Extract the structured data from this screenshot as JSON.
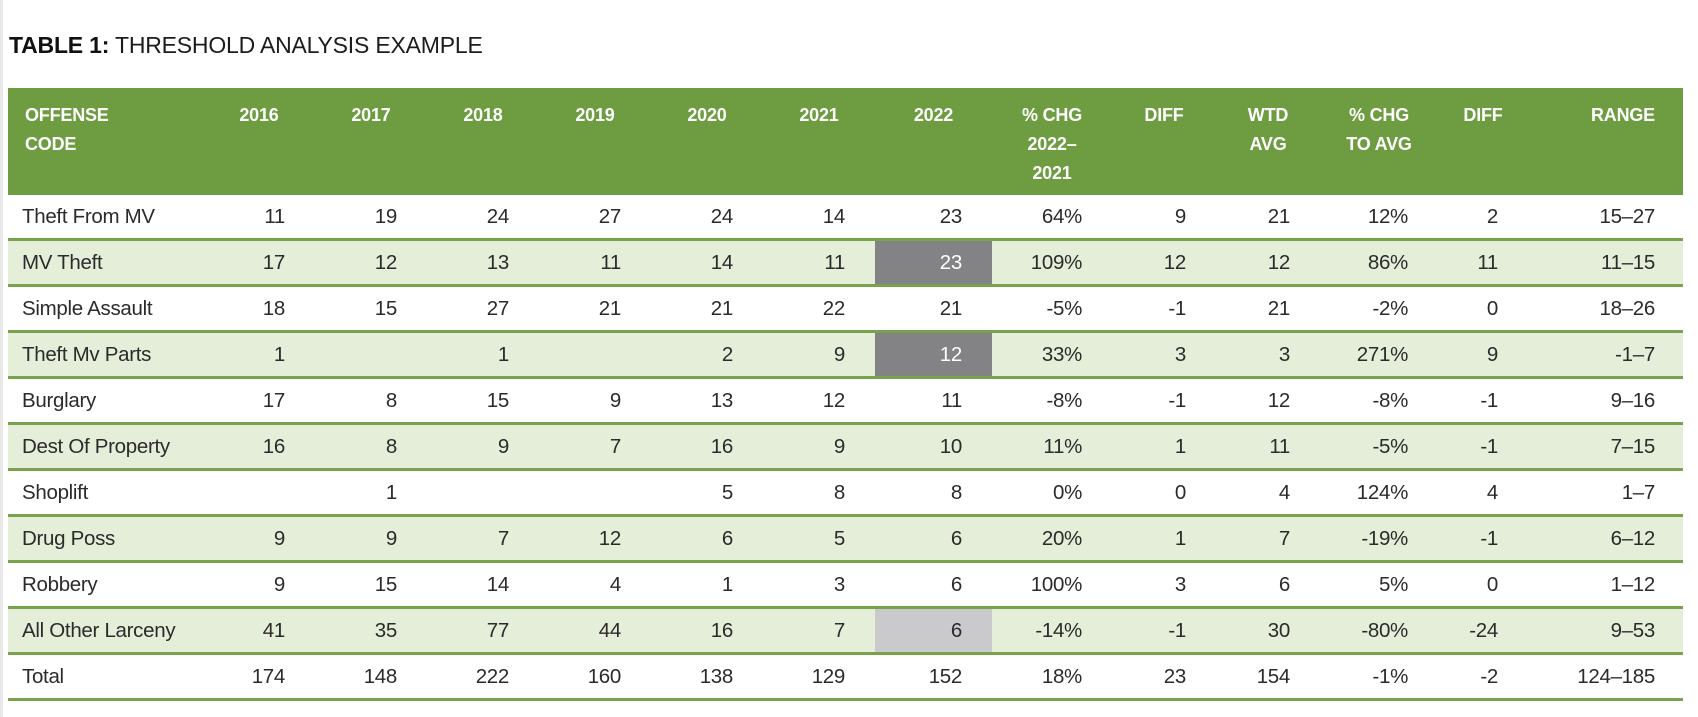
{
  "title": {
    "label": "TABLE 1:",
    "text": " THRESHOLD ANALYSIS EXAMPLE"
  },
  "colors": {
    "header_green": "#6d9c41",
    "divider_green": "#78a34c",
    "row_alt_green": "#e4eed8",
    "highlight_dark_gray": "#838385",
    "highlight_light_gray": "#cacacc"
  },
  "table": {
    "columns": [
      {
        "key": "offense",
        "label": "OFFENSE\nCODE"
      },
      {
        "key": "y2016",
        "label": "2016"
      },
      {
        "key": "y2017",
        "label": "2017"
      },
      {
        "key": "y2018",
        "label": "2018"
      },
      {
        "key": "y2019",
        "label": "2019"
      },
      {
        "key": "y2020",
        "label": "2020"
      },
      {
        "key": "y2021",
        "label": "2021"
      },
      {
        "key": "y2022",
        "label": "2022"
      },
      {
        "key": "pct_chg_2022_2021",
        "label": "% CHG\n2022–\n2021"
      },
      {
        "key": "diff_1",
        "label": "DIFF"
      },
      {
        "key": "wtd_avg",
        "label": "WTD\nAVG"
      },
      {
        "key": "pct_chg_to_avg",
        "label": "% CHG\nTO AVG"
      },
      {
        "key": "diff_2",
        "label": "DIFF"
      },
      {
        "key": "range",
        "label": "RANGE"
      }
    ],
    "rows": [
      {
        "offense": "Theft From MV",
        "cells": [
          "11",
          "19",
          "24",
          "27",
          "24",
          "14",
          "23",
          "64%",
          "9",
          "21",
          "12%",
          "2",
          "15–27"
        ],
        "highlight_2022": null
      },
      {
        "offense": "MV Theft",
        "cells": [
          "17",
          "12",
          "13",
          "11",
          "14",
          "11",
          "23",
          "109%",
          "12",
          "12",
          "86%",
          "11",
          "11–15"
        ],
        "highlight_2022": "dark"
      },
      {
        "offense": "Simple Assault",
        "cells": [
          "18",
          "15",
          "27",
          "21",
          "21",
          "22",
          "21",
          "-5%",
          "-1",
          "21",
          "-2%",
          "0",
          "18–26"
        ],
        "highlight_2022": null
      },
      {
        "offense": "Theft Mv Parts",
        "cells": [
          "1",
          "",
          "1",
          "",
          "2",
          "9",
          "12",
          "33%",
          "3",
          "3",
          "271%",
          "9",
          "-1–7"
        ],
        "highlight_2022": "dark"
      },
      {
        "offense": "Burglary",
        "cells": [
          "17",
          "8",
          "15",
          "9",
          "13",
          "12",
          "11",
          "-8%",
          "-1",
          "12",
          "-8%",
          "-1",
          "9–16"
        ],
        "highlight_2022": null
      },
      {
        "offense": "Dest Of Property",
        "cells": [
          "16",
          "8",
          "9",
          "7",
          "16",
          "9",
          "10",
          "11%",
          "1",
          "11",
          "-5%",
          "-1",
          "7–15"
        ],
        "highlight_2022": null
      },
      {
        "offense": "Shoplift",
        "cells": [
          "",
          "1",
          "",
          "",
          "5",
          "8",
          "8",
          "0%",
          "0",
          "4",
          "124%",
          "4",
          "1–7"
        ],
        "highlight_2022": null
      },
      {
        "offense": "Drug Poss",
        "cells": [
          "9",
          "9",
          "7",
          "12",
          "6",
          "5",
          "6",
          "20%",
          "1",
          "7",
          "-19%",
          "-1",
          "6–12"
        ],
        "highlight_2022": null
      },
      {
        "offense": "Robbery",
        "cells": [
          "9",
          "15",
          "14",
          "4",
          "1",
          "3",
          "6",
          "100%",
          "3",
          "6",
          "5%",
          "0",
          "1–12"
        ],
        "highlight_2022": null
      },
      {
        "offense": "All Other Larceny",
        "cells": [
          "41",
          "35",
          "77",
          "44",
          "16",
          "7",
          "6",
          "-14%",
          "-1",
          "30",
          "-80%",
          "-24",
          "9–53"
        ],
        "highlight_2022": "light"
      },
      {
        "offense": "Total",
        "cells": [
          "174",
          "148",
          "222",
          "160",
          "138",
          "129",
          "152",
          "18%",
          "23",
          "154",
          "-1%",
          "-2",
          "124–185"
        ],
        "highlight_2022": null
      }
    ]
  }
}
